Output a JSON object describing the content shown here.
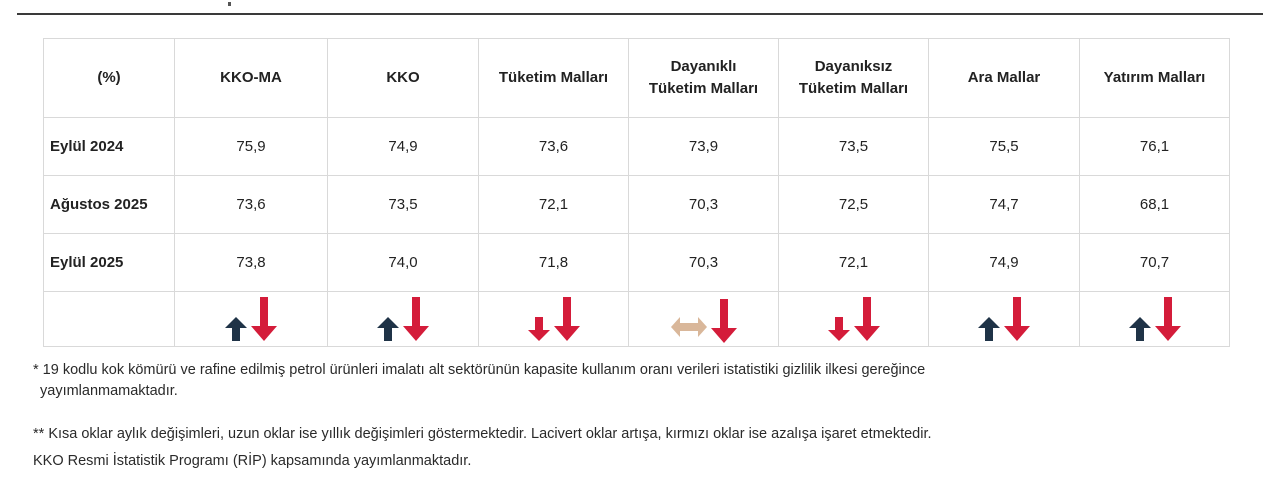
{
  "table": {
    "header": {
      "label": "(%)",
      "columns": [
        {
          "line1": "KKO-MA",
          "line2": ""
        },
        {
          "line1": "KKO",
          "line2": ""
        },
        {
          "line1": "Tüketim Malları",
          "line2": ""
        },
        {
          "line1": "Dayanıklı",
          "line2": "Tüketim Malları"
        },
        {
          "line1": "Dayanıksız",
          "line2": "Tüketim Malları"
        },
        {
          "line1": "Ara Mallar",
          "line2": ""
        },
        {
          "line1": "Yatırım Malları",
          "line2": ""
        }
      ]
    },
    "rows": [
      {
        "label": "Eylül 2024",
        "values": [
          "75,9",
          "74,9",
          "73,6",
          "73,9",
          "73,5",
          "75,5",
          "76,1"
        ]
      },
      {
        "label": "Ağustos 2025",
        "values": [
          "73,6",
          "73,5",
          "72,1",
          "70,3",
          "72,5",
          "74,7",
          "68,1"
        ]
      },
      {
        "label": "Eylül 2025",
        "values": [
          "73,8",
          "74,0",
          "71,8",
          "70,3",
          "72,1",
          "74,9",
          "70,7"
        ]
      }
    ],
    "arrows": [
      {
        "short": "up",
        "long": "down"
      },
      {
        "short": "up",
        "long": "down"
      },
      {
        "short": "down",
        "long": "down"
      },
      {
        "short": "flat",
        "long": "down"
      },
      {
        "short": "down",
        "long": "down"
      },
      {
        "short": "up",
        "long": "down"
      },
      {
        "short": "up",
        "long": "down"
      }
    ]
  },
  "colors": {
    "up": "#1f3347",
    "down": "#d41c3a",
    "flat": "#d9b79a"
  },
  "notes": {
    "note1_line1": "* 19 kodlu kok kömürü ve rafine edilmiş petrol ürünleri imalatı alt sektörünün kapasite kullanım oranı verileri istatistiki gizlilik ilkesi gereğince",
    "note1_line2": "yayımlanmamaktadır.",
    "note2": "** Kısa oklar aylık değişimleri, uzun oklar ise yıllık değişimleri göstermektedir. Lacivert oklar artışa, kırmızı oklar ise azalışa işaret etmektedir.",
    "note3": "KKO Resmi İstatistik Programı (RİP) kapsamında yayımlanmaktadır."
  }
}
